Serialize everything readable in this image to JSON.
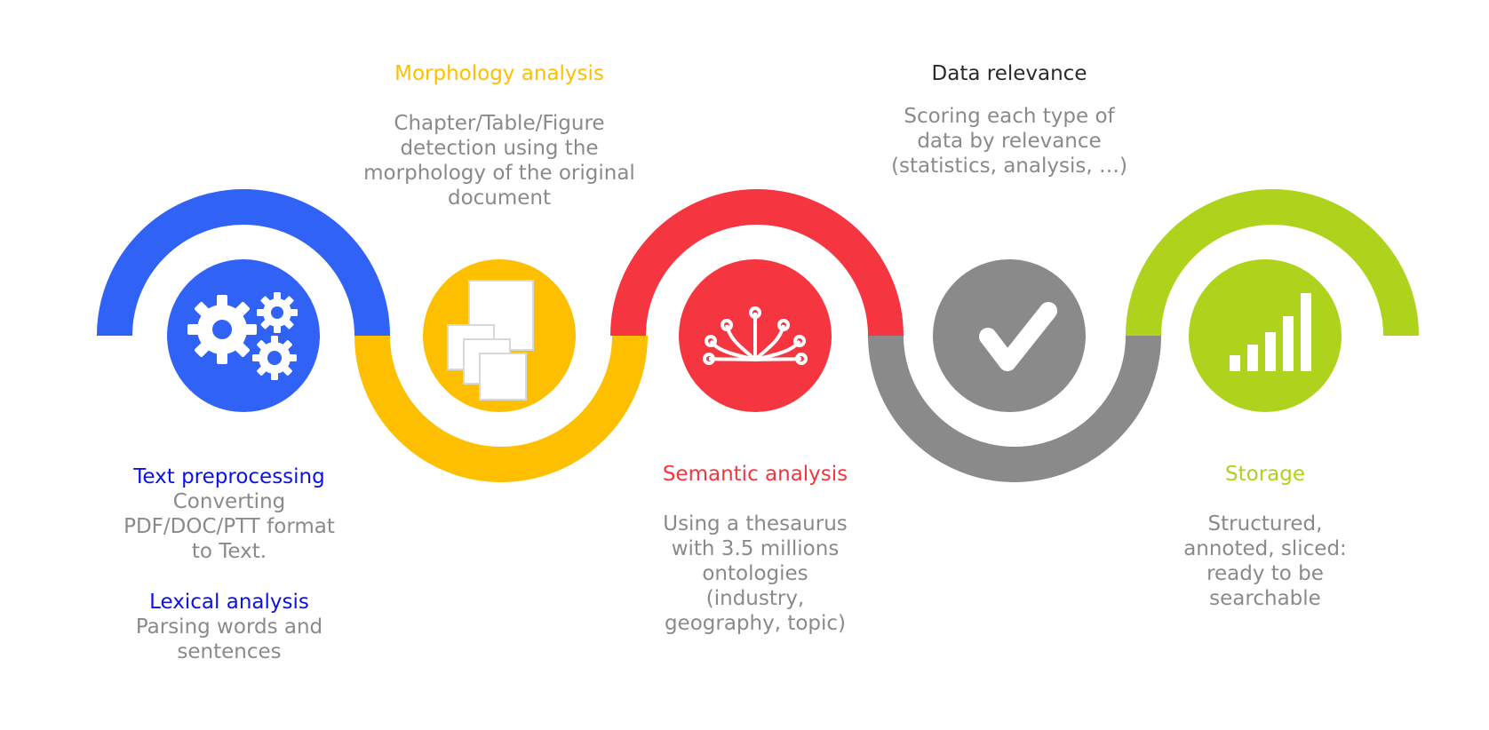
{
  "colors": {
    "blue": "#3062f6",
    "yellow": "#fdbf00",
    "red": "#f5353f",
    "gray": "#8a8a8a",
    "green": "#afd31d",
    "label_blue": "#0a12e6",
    "label_yellow": "#fdbf00",
    "label_red": "#f5353f",
    "label_dark": "#2a2a2a",
    "label_green": "#afd31d",
    "desc_gray": "#8a8a8a"
  },
  "steps": [
    {
      "title": "Text preprocessing",
      "description": "Converting\nPDF/DOC/PTT format\nto Text.",
      "icon": "gears-icon"
    },
    {
      "title": "Lexical analysis",
      "description": "Parsing words and\nsentences",
      "icon": ""
    },
    {
      "title": "Morphology analysis",
      "description": "Chapter/Table/Figure\ndetection using the\nmorphology of  the original\ndocument",
      "icon": "documents-icon"
    },
    {
      "title": "Semantic analysis",
      "description": "Using a thesaurus\nwith 3.5 millions\nontologies\n(industry,\ngeography, topic)",
      "icon": "network-nodes-icon"
    },
    {
      "title": "Data relevance",
      "description": "Scoring each type of\ndata by relevance\n(statistics, analysis, …)",
      "icon": "checkmark-icon"
    },
    {
      "title": "Storage",
      "description": "Structured,\nannoted, sliced:\nready to be\nsearchable",
      "icon": "bar-chart-icon"
    }
  ]
}
